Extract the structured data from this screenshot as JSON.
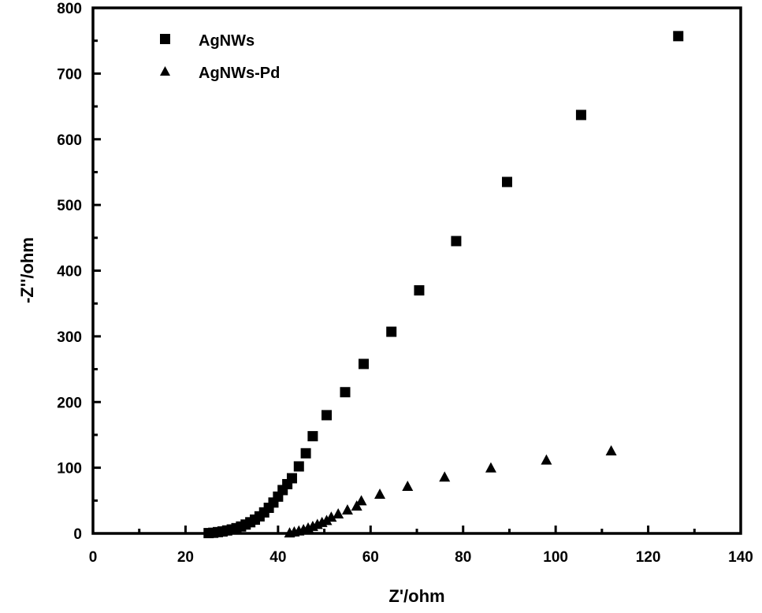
{
  "chart_data": {
    "type": "scatter",
    "xlabel": "Z'/ohm",
    "ylabel": "-Z''/ohm",
    "xlim": [
      0,
      140
    ],
    "ylim": [
      0,
      800
    ],
    "xticks": [
      0,
      20,
      40,
      60,
      80,
      100,
      120,
      140
    ],
    "yticks": [
      0,
      100,
      200,
      300,
      400,
      500,
      600,
      700,
      800
    ],
    "grid": false,
    "legend_position": "top-left",
    "series": [
      {
        "name": "AgNWs",
        "marker": "square",
        "color": "#000000",
        "points": [
          [
            25,
            0.5
          ],
          [
            26,
            1
          ],
          [
            27,
            2
          ],
          [
            28,
            3
          ],
          [
            29,
            4.5
          ],
          [
            30,
            6
          ],
          [
            31,
            8
          ],
          [
            32,
            10.5
          ],
          [
            33,
            13.5
          ],
          [
            34,
            17
          ],
          [
            35,
            21
          ],
          [
            36,
            26
          ],
          [
            37,
            32
          ],
          [
            38,
            39
          ],
          [
            39,
            47
          ],
          [
            40,
            56
          ],
          [
            41,
            66
          ],
          [
            42,
            75
          ],
          [
            43,
            84
          ],
          [
            44.5,
            102
          ],
          [
            46,
            122
          ],
          [
            47.5,
            148
          ],
          [
            50.5,
            180
          ],
          [
            54.5,
            215
          ],
          [
            58.5,
            258
          ],
          [
            64.5,
            307
          ],
          [
            70.5,
            370
          ],
          [
            78.5,
            445
          ],
          [
            89.5,
            535
          ],
          [
            105.5,
            637
          ],
          [
            126.5,
            757
          ]
        ]
      },
      {
        "name": "AgNWs-Pd",
        "marker": "triangle",
        "color": "#000000",
        "points": [
          [
            42.5,
            1
          ],
          [
            43.5,
            2.5
          ],
          [
            44.5,
            4
          ],
          [
            45.5,
            6
          ],
          [
            46.5,
            8.5
          ],
          [
            47.5,
            11
          ],
          [
            48.5,
            14
          ],
          [
            49.5,
            17
          ],
          [
            50.5,
            20
          ],
          [
            51.5,
            25
          ],
          [
            53,
            30
          ],
          [
            55,
            36
          ],
          [
            57,
            42
          ],
          [
            58,
            50
          ],
          [
            62,
            60
          ],
          [
            68,
            72
          ],
          [
            76,
            86
          ],
          [
            86,
            100
          ],
          [
            98,
            112
          ],
          [
            112,
            126
          ]
        ]
      }
    ]
  }
}
